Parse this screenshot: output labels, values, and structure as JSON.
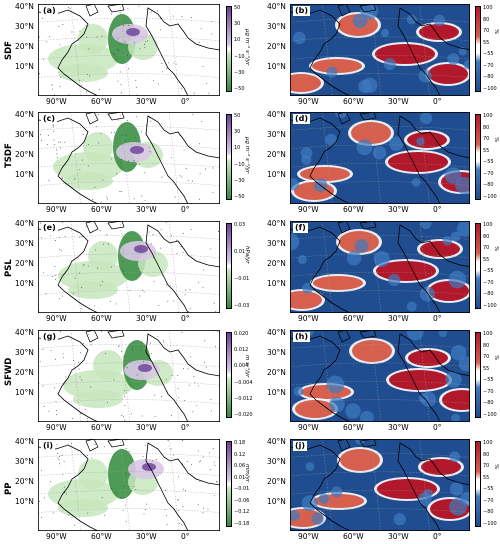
{
  "rows": [
    {
      "name": "SDF",
      "left_label": "(a)",
      "right_label": "(b)",
      "unit": "μg m⁻² s⁻¹/yr",
      "left_ticks": [
        "50",
        "30",
        "10",
        "−10",
        "−30",
        "−50"
      ],
      "right_ticks": [
        "100",
        "80",
        "70",
        "55",
        "−55",
        "−70",
        "−80",
        "−100"
      ],
      "right_unit": "%"
    },
    {
      "name": "TSDF",
      "left_label": "(c)",
      "right_label": "(d)",
      "unit": "μg m⁻² s⁻¹/yr",
      "left_ticks": [
        "50",
        "30",
        "10",
        "−10",
        "−30",
        "−50"
      ],
      "right_ticks": [
        "100",
        "80",
        "70",
        "55",
        "−55",
        "−70",
        "−80",
        "−100"
      ],
      "right_unit": "%"
    },
    {
      "name": "PSL",
      "left_label": "(e)",
      "right_label": "(f)",
      "unit": "hPa/yr",
      "left_ticks": [
        "0.03",
        "0.01",
        "−0.01",
        "−0.03"
      ],
      "right_ticks": [
        "100",
        "80",
        "70",
        "55",
        "−55",
        "−70",
        "−80",
        "−100"
      ],
      "right_unit": "%"
    },
    {
      "name": "SFWD",
      "left_label": "(g)",
      "right_label": "(h)",
      "unit": "m s⁻¹/yr",
      "left_ticks": [
        "0.020",
        "0.012",
        "0.004",
        "−0.004",
        "−0.012",
        "−0.020"
      ],
      "right_ticks": [
        "100",
        "80",
        "70",
        "55",
        "−55",
        "−70",
        "−80",
        "−100"
      ],
      "right_unit": "%"
    },
    {
      "name": "PP",
      "left_label": "(i)",
      "right_label": "(j)",
      "unit": "mm/yr",
      "left_ticks": [
        "0.18",
        "0.12",
        "0.06",
        "0.01",
        "−0.01",
        "−0.06",
        "−0.12",
        "−0.18"
      ],
      "right_ticks": [
        "100",
        "80",
        "70",
        "55",
        "−55",
        "−70",
        "−80",
        "−100"
      ],
      "right_unit": "%"
    }
  ],
  "lat_labels": [
    "40°N",
    "30°N",
    "20°N",
    "10°N"
  ],
  "lon_labels": [
    "90°W",
    "60°W",
    "30°W",
    "0°"
  ],
  "colors": {
    "green_dark": "#2f8a3a",
    "green_light": "#c7e6bd",
    "purple_dark": "#6a3f99",
    "purple_light": "#d9c8e4",
    "blue_dark": "#1f4d8f",
    "blue_mid": "#3f7bc0",
    "red_dark": "#b2182b",
    "red_mid": "#d6604d"
  }
}
